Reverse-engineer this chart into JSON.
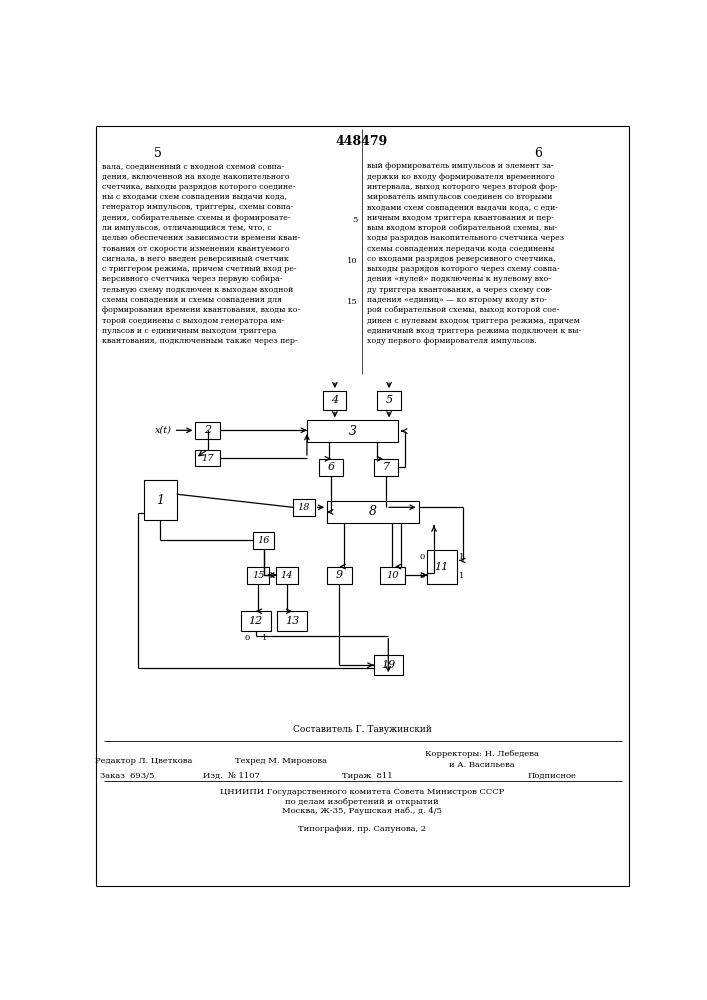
{
  "title": "448479",
  "page_left": "5",
  "page_right": "6",
  "text_left": "вала, соединенный с входной схемой совпа-\nдения, включенной на входе накопительного\nсчетчика, выходы разрядов которого соедине-\nны с входами схем совпадения выдачи кода,\nгенератор импульсов, триггеры, схемы совпа-\nдения, собирательные схемы и формировате-\nли импульсов, отличающийся тем, что, с\nцелью обеспечения зависимости времени кван-\nтования от скорости изменения квантуемого\nсигнала, в него введен реверсивный счетчик\nс триггером режима, причем счетный вход ре-\nверсивного счетчика через первую собира-\nтельную схему подключен к выходам входной\nсхемы совпадения и схемы совпадения для\nформирования времени квантования, входы ко-\nторой соединены с выходом генератора им-\nпульсов и с единичным выходом триггера\nквантования, подключенным также через пер-",
  "text_right": "вый формирователь импульсов и элемент за-\nдержки ко входу формирователя временного\nинтервала, выход которого через второй фор-\nмирователь импульсов соединен со вторыми\nвходами схем совпадения выдачи кода, с еди-\nничным входом триггера квантования и пер-\nвым входом второй собирательной схемы, вы-\nходы разрядов накопительного счетчика через\nсхемы совпадения передачи кода соединены\nсо входами разрядов реверсивного счетчика,\nвыходы разрядов которого через схему совпа-\nдения «нулей» подключены к нулевому вхо-\nду триггера квантования, а через схему сов-\nпадения «единиц» — ко второму входу вто-\nрой собирательной схемы, выход которой сое-\nдинен с нулевым входом триггера режима, причем\nединичный вход триггера режима подключен к вы-\nходу первого формирователя импульсов.",
  "composer": "Составитель Г. Тавужинский",
  "editor": "Редактор Л. Цветкова",
  "tech_editor": "Техред М. Миронова",
  "corrector1": "Корректоры: Н. Лебедева",
  "corrector2": "и А. Васильева",
  "order": "Заказ  693/5",
  "izd": "Изд.  № 1107",
  "tirazh": "Тираж  811",
  "podpisnoe": "Подписное",
  "cniippi": "ЦНИИПИ Государственного комитета Совета Министров СССР",
  "cniippi2": "по делам изобретений и открытий",
  "moscow": "Москва, Ж-35, Раушская наб., д. 4/5",
  "tipografia": "Типография, пр. Сапунова, 2",
  "bg_color": "#ffffff",
  "text_color": "#000000"
}
